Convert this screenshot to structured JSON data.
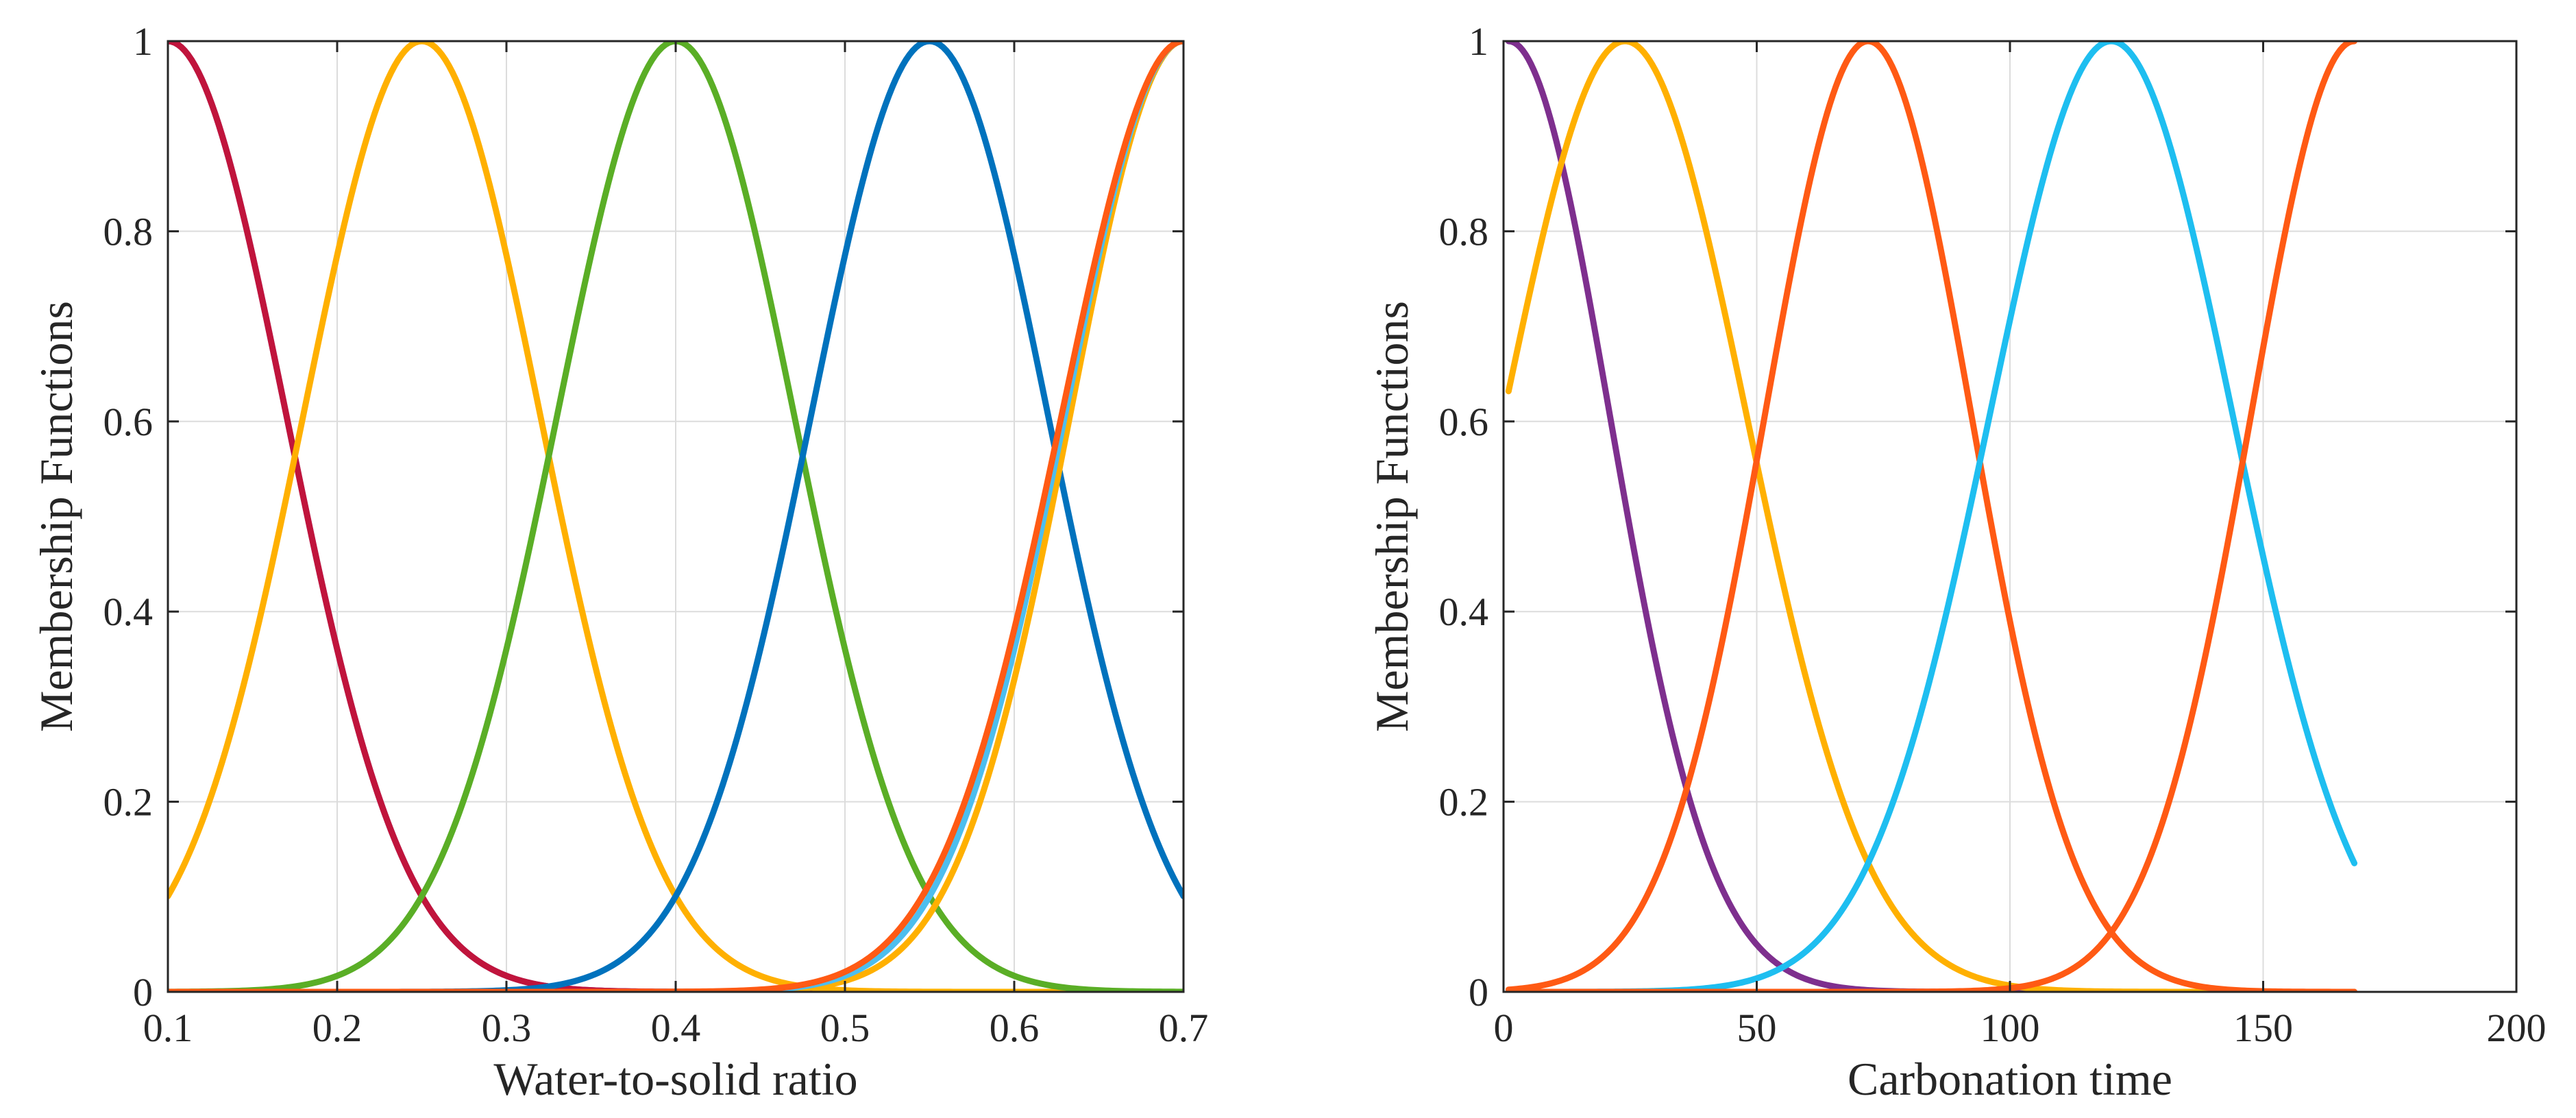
{
  "chart_data": [
    {
      "type": "line",
      "title": "",
      "xlabel": "Water-to-solid ratio",
      "ylabel": "Membership Functions",
      "xlim": [
        0.1,
        0.7
      ],
      "ylim": [
        0,
        1
      ],
      "xticks": [
        0.1,
        0.2,
        0.3,
        0.4,
        0.5,
        0.6,
        0.7
      ],
      "yticks": [
        0,
        0.2,
        0.4,
        0.6,
        0.8,
        1
      ],
      "xtick_labels": [
        "0.1",
        "0.2",
        "0.3",
        "0.4",
        "0.5",
        "0.6",
        "0.7"
      ],
      "ytick_labels": [
        "0",
        "0.2",
        "0.4",
        "0.6",
        "0.8",
        "1"
      ],
      "grid": true,
      "curve_kind": "gaussian",
      "series": [
        {
          "color": "#7e2f8e",
          "center": 0.1,
          "sigma": 0.07,
          "x_range": [
            0.1,
            0.7
          ]
        },
        {
          "color": "#c0143c",
          "center": 0.1,
          "sigma": 0.07,
          "x_range": [
            0.1,
            0.7
          ]
        },
        {
          "color": "#ffb000",
          "center": 0.25,
          "sigma": 0.07,
          "x_range": [
            0.1,
            0.7
          ]
        },
        {
          "color": "#5aae26",
          "center": 0.4,
          "sigma": 0.07,
          "x_range": [
            0.1,
            0.7
          ]
        },
        {
          "color": "#0072bd",
          "center": 0.55,
          "sigma": 0.07,
          "x_range": [
            0.1,
            0.7
          ]
        },
        {
          "color": "#ffb000",
          "center": 0.7,
          "sigma": 0.067,
          "x_range": [
            0.1,
            0.7
          ]
        },
        {
          "color": "#4dbeee",
          "center": 0.7,
          "sigma": 0.07,
          "x_range": [
            0.1,
            0.7
          ]
        },
        {
          "color": "#ff5a14",
          "center": 0.7,
          "sigma": 0.072,
          "x_range": [
            0.1,
            0.7
          ]
        }
      ]
    },
    {
      "type": "line",
      "title": "",
      "xlabel": "Carbonation time",
      "ylabel": "Membership Functions",
      "xlim": [
        0,
        200
      ],
      "ylim": [
        0,
        1
      ],
      "xticks": [
        0,
        50,
        100,
        150,
        200
      ],
      "yticks": [
        0,
        0.2,
        0.4,
        0.6,
        0.8,
        1
      ],
      "xtick_labels": [
        "0",
        "50",
        "100",
        "150",
        "200"
      ],
      "ytick_labels": [
        "0",
        "0.2",
        "0.4",
        "0.6",
        "0.8",
        "1"
      ],
      "grid": true,
      "curve_kind": "gaussian",
      "series": [
        {
          "color": "#7e2f8e",
          "center": 1,
          "sigma": 20,
          "x_range": [
            1,
            168
          ]
        },
        {
          "color": "#ffb000",
          "center": 24,
          "sigma": 24,
          "x_range": [
            1,
            168
          ]
        },
        {
          "color": "#ff5a14",
          "center": 72,
          "sigma": 20.4,
          "x_range": [
            1,
            168
          ]
        },
        {
          "color": "#1ebef0",
          "center": 120,
          "sigma": 24,
          "x_range": [
            1,
            168
          ]
        },
        {
          "color": "#ff5a14",
          "center": 168,
          "sigma": 20.4,
          "x_range": [
            1,
            168
          ]
        }
      ]
    }
  ]
}
